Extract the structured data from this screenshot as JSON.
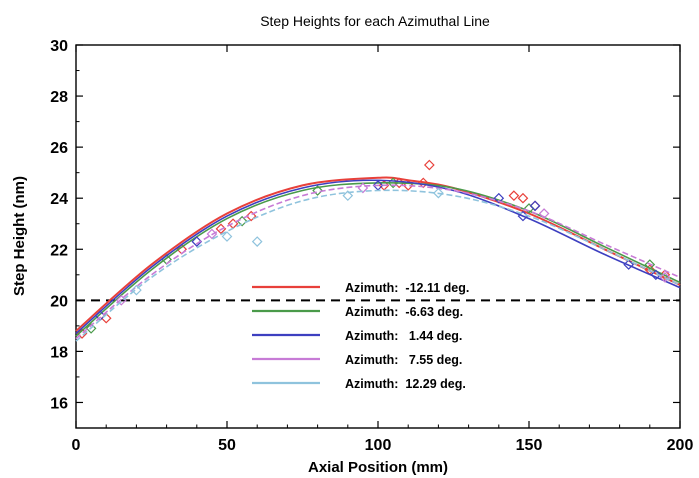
{
  "chart_data": {
    "type": "line",
    "title": "Step Heights for each Azimuthal Line",
    "xlabel": "Axial Position (mm)",
    "ylabel": "Step Height (nm)",
    "xlim": [
      0,
      200
    ],
    "ylim": [
      15,
      30
    ],
    "x_ticks": [
      "0",
      "50",
      "100",
      "150",
      "200"
    ],
    "y_ticks": [
      "16",
      "18",
      "20",
      "22",
      "24",
      "26",
      "28",
      "30"
    ],
    "grid": false,
    "legend_position": "bottom-center",
    "reference_line": {
      "y": 20,
      "style": "dashed",
      "color": "#000000"
    },
    "series": [
      {
        "name": "Azimuth:  -12.11 deg.",
        "color": "#e8403a",
        "x": [
          0,
          25,
          50,
          75,
          100,
          110,
          125,
          150,
          175,
          200
        ],
        "fit": [
          18.8,
          21.4,
          23.4,
          24.5,
          24.8,
          24.7,
          24.4,
          23.4,
          22.0,
          20.6
        ],
        "points_x": [
          2,
          10,
          35,
          48,
          52,
          58,
          102,
          107,
          110,
          115,
          117,
          145,
          148,
          152,
          190,
          195
        ],
        "points_y": [
          18.7,
          19.3,
          22.0,
          22.8,
          23.0,
          23.3,
          24.5,
          24.6,
          24.5,
          24.6,
          25.3,
          24.1,
          24.0,
          23.7,
          21.2,
          21.0
        ]
      },
      {
        "name": "Azimuth:  -6.63 deg.",
        "color": "#4a9a4a",
        "x": [
          0,
          25,
          50,
          75,
          100,
          125,
          150,
          175,
          200
        ],
        "fit": [
          18.6,
          21.2,
          23.2,
          24.3,
          24.6,
          24.4,
          23.5,
          22.1,
          20.7
        ],
        "points_x": [
          5,
          30,
          55,
          80,
          105,
          150,
          190
        ],
        "points_y": [
          18.9,
          21.6,
          23.1,
          24.3,
          24.6,
          23.6,
          21.4
        ]
      },
      {
        "name": "Azimuth:   1.44 deg.",
        "color": "#3d3fc0",
        "x": [
          0,
          25,
          50,
          75,
          100,
          125,
          150,
          175,
          200
        ],
        "fit": [
          18.7,
          21.3,
          23.3,
          24.4,
          24.7,
          24.3,
          23.2,
          21.8,
          20.5
        ],
        "points_x": [
          8,
          40,
          100,
          140,
          148,
          152,
          183,
          192
        ],
        "points_y": [
          19.4,
          22.3,
          24.5,
          24.0,
          23.3,
          23.7,
          21.4,
          21.0
        ]
      },
      {
        "name": "Azimuth:   7.55 deg.",
        "color": "#c77bd6",
        "x": [
          0,
          25,
          50,
          75,
          100,
          125,
          150,
          175,
          200
        ],
        "fit": [
          18.5,
          21.0,
          22.9,
          24.1,
          24.5,
          24.3,
          23.5,
          22.2,
          20.9
        ],
        "points_x": [
          15,
          45,
          95,
          155,
          195
        ],
        "points_y": [
          20.0,
          22.6,
          24.4,
          23.4,
          20.9
        ]
      },
      {
        "name": "Azimuth:  12.29 deg.",
        "color": "#8fc3dd",
        "x": [
          0,
          25,
          50,
          75,
          100,
          125,
          150,
          175,
          200
        ],
        "fit": [
          18.4,
          20.9,
          22.7,
          23.9,
          24.3,
          24.1,
          23.3,
          22.0,
          20.6
        ],
        "points_x": [
          20,
          50,
          60,
          90,
          120
        ],
        "points_y": [
          20.4,
          22.5,
          22.3,
          24.1,
          24.2
        ]
      }
    ]
  }
}
